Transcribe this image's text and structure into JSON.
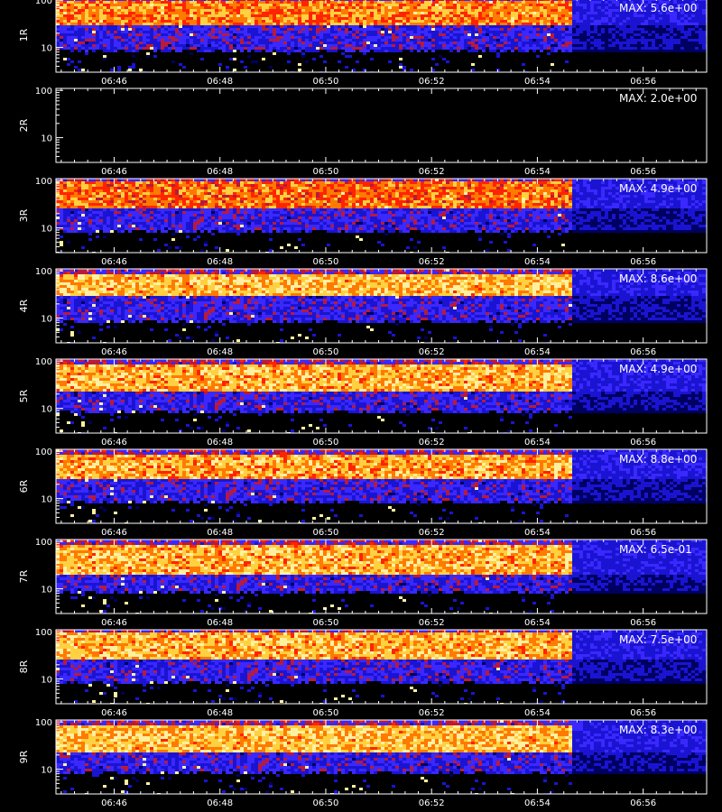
{
  "chart_data": {
    "type": "heatmap",
    "x_tick_labels": [
      "06:46",
      "06:48",
      "06:50",
      "06:52",
      "06:54",
      "06:56"
    ],
    "x_ticks_minutes": [
      46,
      48,
      50,
      52,
      54,
      56
    ],
    "x_range_minutes": [
      44.9,
      57.2
    ],
    "data_end_minutes": 54.6,
    "y_tick_labels": [
      "100",
      "10"
    ],
    "y_scale": "log",
    "y_range": [
      3,
      110
    ],
    "colormap": [
      "#000000",
      "#000060",
      "#1a14d2",
      "#3a28ff",
      "#b81a3c",
      "#ff2400",
      "#ff7a00",
      "#ffd040",
      "#fff0a0"
    ],
    "xlabel": "",
    "panels": [
      {
        "label": "1R",
        "max_text": "MAX: 5.6e+00",
        "max": 5.6,
        "band": [
          30,
          90
        ],
        "intensity": 0.78
      },
      {
        "label": "2R",
        "max_text": "MAX: 2.0e+00",
        "max": 2.0,
        "band": [
          30,
          90
        ],
        "intensity": 0.0
      },
      {
        "label": "3R",
        "max_text": "MAX: 4.9e+00",
        "max": 4.9,
        "band": [
          28,
          85
        ],
        "intensity": 0.74
      },
      {
        "label": "4R",
        "max_text": "MAX: 8.6e+00",
        "max": 8.6,
        "band": [
          30,
          80
        ],
        "intensity": 0.88
      },
      {
        "label": "5R",
        "max_text": "MAX: 4.9e+00",
        "max": 4.9,
        "band": [
          25,
          80
        ],
        "intensity": 0.86
      },
      {
        "label": "6R",
        "max_text": "MAX: 8.8e+00",
        "max": 8.8,
        "band": [
          28,
          80
        ],
        "intensity": 0.84
      },
      {
        "label": "7R",
        "max_text": "MAX: 6.5e-01",
        "max": 0.65,
        "band": [
          20,
          80
        ],
        "intensity": 0.86
      },
      {
        "label": "8R",
        "max_text": "MAX: 7.5e+00",
        "max": 7.5,
        "band": [
          28,
          85
        ],
        "intensity": 0.86
      },
      {
        "label": "9R",
        "max_text": "MAX: 8.3e+00",
        "max": 8.3,
        "band": [
          25,
          80
        ],
        "intensity": 0.88
      }
    ]
  }
}
